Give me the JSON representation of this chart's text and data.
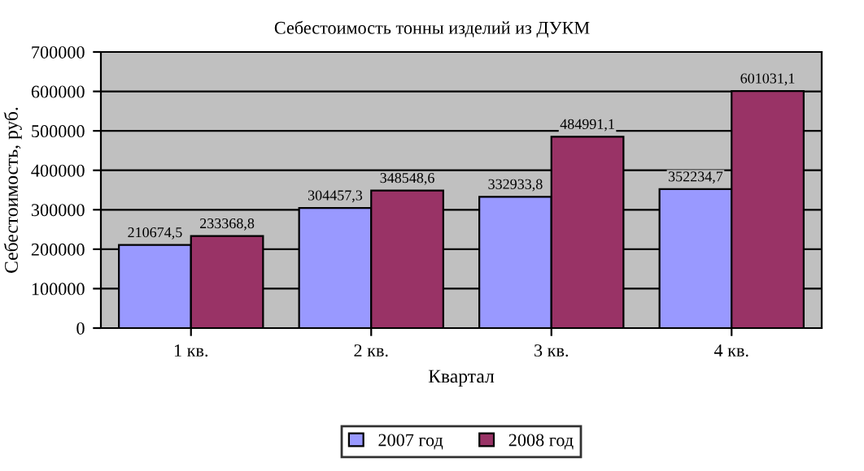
{
  "chart_data": {
    "type": "bar",
    "title": "Себестоимость тонны изделий из ДУКМ",
    "xlabel": "Квартал",
    "ylabel": "Себестоимость, руб.",
    "categories": [
      "1 кв.",
      "2 кв.",
      "3 кв.",
      "4 кв."
    ],
    "series": [
      {
        "name": "2007 год",
        "color": "#9999ff",
        "values": [
          210674.5,
          304457.3,
          332933.8,
          352234.7
        ],
        "value_labels": [
          "210674,5",
          "304457,3",
          "332933,8",
          "352234,7"
        ]
      },
      {
        "name": "2008 год",
        "color": "#993366",
        "values": [
          233368.8,
          348548.6,
          484991.1,
          601031.1
        ],
        "value_labels": [
          "233368,8",
          "348548,6",
          "484991,1",
          "601031,1"
        ]
      }
    ],
    "ylim": [
      0,
      700000
    ],
    "yticks": [
      0,
      100000,
      200000,
      300000,
      400000,
      500000,
      600000,
      700000
    ],
    "grid": "y",
    "legend": "bottom"
  }
}
